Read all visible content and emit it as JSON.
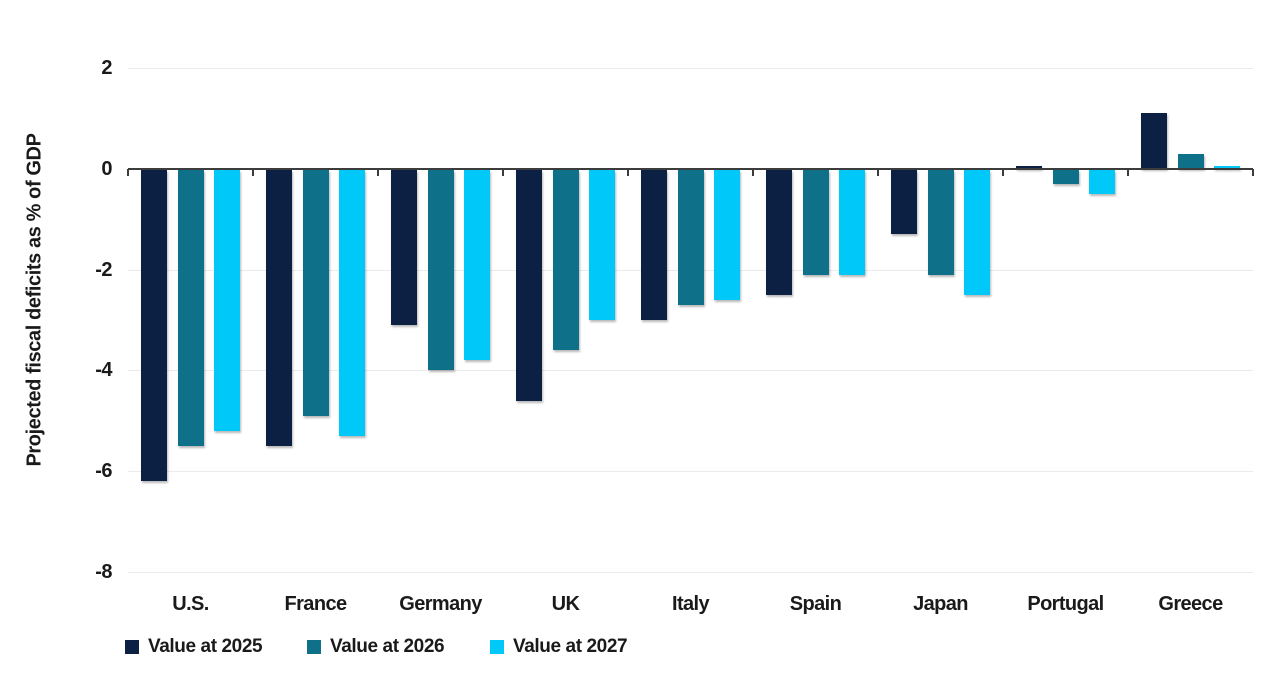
{
  "chart_data": {
    "type": "bar",
    "title": "",
    "ylabel": "Projected fiscal deficits as % of GDP",
    "xlabel": "",
    "categories": [
      "U.S.",
      "France",
      "Germany",
      "UK",
      "Italy",
      "Spain",
      "Japan",
      "Portugal",
      "Greece"
    ],
    "series": [
      {
        "name": "Value at 2025",
        "color": "#0b2043",
        "values": [
          -6.2,
          -5.5,
          -3.1,
          -4.6,
          -3.0,
          -2.5,
          -1.3,
          0.0,
          1.1
        ]
      },
      {
        "name": "Value at 2026",
        "color": "#0e7189",
        "values": [
          -5.5,
          -4.9,
          -4.0,
          -3.6,
          -2.7,
          -2.1,
          -2.1,
          -0.3,
          0.3
        ]
      },
      {
        "name": "Value at 2027",
        "color": "#00c9f9",
        "values": [
          -5.2,
          -5.3,
          -3.8,
          -3.0,
          -2.6,
          -2.1,
          -2.5,
          -0.5,
          0.0
        ]
      }
    ],
    "ylim": [
      -8,
      2
    ],
    "ytick_step": 2,
    "yticks": [
      2,
      0,
      -2,
      -4,
      -6,
      -8
    ],
    "grid": true,
    "legend_position": "bottom-left",
    "colors": {
      "background": "#ffffff",
      "gridline": "#ebebeb",
      "zero_axis": "#3c3c3c",
      "text": "#1a1a1a"
    }
  }
}
